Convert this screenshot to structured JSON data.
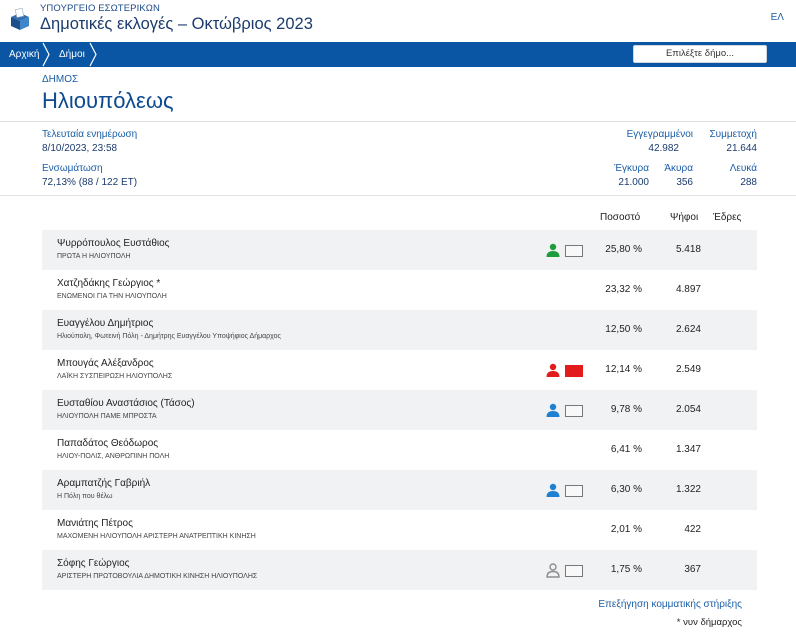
{
  "header": {
    "ministry": "ΥΠΟΥΡΓΕΙΟ ΕΣΩΤΕΡΙΚΩΝ",
    "title": "Δημοτικές εκλογές – Οκτώβριος 2023",
    "lang": "ΕΛ"
  },
  "nav": {
    "breadcrumbs": [
      "Αρχική",
      "Δήμοι"
    ],
    "select_label": "Επιλέξτε δήμο..."
  },
  "municipality": {
    "type_label": "ΔΗΜΟΣ",
    "name": "Ηλιουπόλεως"
  },
  "stats": {
    "last_update_label": "Τελευταία ενημέρωση",
    "last_update_value": "8/10/2023, 23:58",
    "integration_label": "Ενσωμάτωση",
    "integration_value": "72,13% (88 / 122 ΕΤ)",
    "registered_label": "Εγγεγραμμένοι",
    "registered_value": "42.982",
    "turnout_label": "Συμμετοχή",
    "turnout_value": "21.644",
    "valid_label": "Έγκυρα",
    "valid_value": "21.000",
    "invalid_label": "Άκυρα",
    "invalid_value": "356",
    "blank_label": "Λευκά",
    "blank_value": "288"
  },
  "table": {
    "headers": [
      "Ποσοστό",
      "Ψήφοι",
      "Έδρες"
    ],
    "rows": [
      {
        "name": "Ψυρρόπουλος Ευστάθιος",
        "party": "ΠΡΩΤΑ Η ΗΛΙΟΥΠΟΛΗ",
        "percent": "25,80 %",
        "votes": "5.418",
        "icon": "person-green-icon"
      },
      {
        "name": "Χατζηδάκης Γεώργιος *",
        "party": "ΕΝΩΜΕΝΟΙ ΓΙΑ ΤΗΝ ΗΛΙΟΥΠΟΛΗ",
        "percent": "23,32 %",
        "votes": "4.897",
        "icon": ""
      },
      {
        "name": "Ευαγγέλου Δημήτριος",
        "party": "Ηλιούπολη, Φωτεινή Πόλη - Δημήτρης Ευαγγέλου Υποψήφιος Δήμαρχος",
        "percent": "12,50 %",
        "votes": "2.624",
        "icon": ""
      },
      {
        "name": "Μπουγάς Αλέξανδρος",
        "party": "ΛΑΪΚΗ ΣΥΣΠΕΙΡΩΣΗ ΗΛΙΟΥΠΟΛΗΣ",
        "percent": "12,14 %",
        "votes": "2.549",
        "icon": "person-red-icon"
      },
      {
        "name": "Ευσταθίου Αναστάσιος (Τάσος)",
        "party": "ΗΛΙΟΥΠΟΛΗ ΠΑΜΕ ΜΠΡΟΣΤΑ",
        "percent": "9,78 %",
        "votes": "2.054",
        "icon": "person-blue-icon"
      },
      {
        "name": "Παπαδάτος Θεόδωρος",
        "party": "ΗΛΙΟΥ-ΠΟΛΙΣ, ΑΝΘΡΩΠΙΝΗ ΠΟΛΗ",
        "percent": "6,41 %",
        "votes": "1.347",
        "icon": ""
      },
      {
        "name": "Αραμπατζής Γαβριήλ",
        "party": "Η Πόλη που θέλω",
        "percent": "6,30 %",
        "votes": "1.322",
        "icon": "person-blue-icon"
      },
      {
        "name": "Μανιάτης Πέτρος",
        "party": "ΜΑΧΟΜΕΝΗ ΗΛΙΟΥΠΟΛΗ ΑΡΙΣΤΕΡΗ ΑΝΑΤΡΕΠΤΙΚΗ ΚΙΝΗΣΗ",
        "percent": "2,01 %",
        "votes": "422",
        "icon": ""
      },
      {
        "name": "Σόφης Γεώργιος",
        "party": "ΑΡΙΣΤΕΡΗ ΠΡΩΤΟΒΟΥΛΙΑ ΔΗΜΟΤΙΚΗ ΚΙΝΗΣΗ ΗΛΙΟΥΠΟΛΗΣ",
        "percent": "1,75 %",
        "votes": "367",
        "icon": "person-gray-icon"
      }
    ]
  },
  "footer": {
    "link": "Επεξήγηση κομματικής στήριξης",
    "note": "* νυν δήμαρχος"
  },
  "colors": {
    "nav_bg": "#0a56a4",
    "link": "#1a5ea7",
    "title": "#0d4a90",
    "support_green": "#1e9b3a",
    "support_red": "#e21c1c",
    "support_blue": "#1f7fd1",
    "support_gray": "#8e8e8e",
    "row_alt": "#f1f2f4"
  }
}
